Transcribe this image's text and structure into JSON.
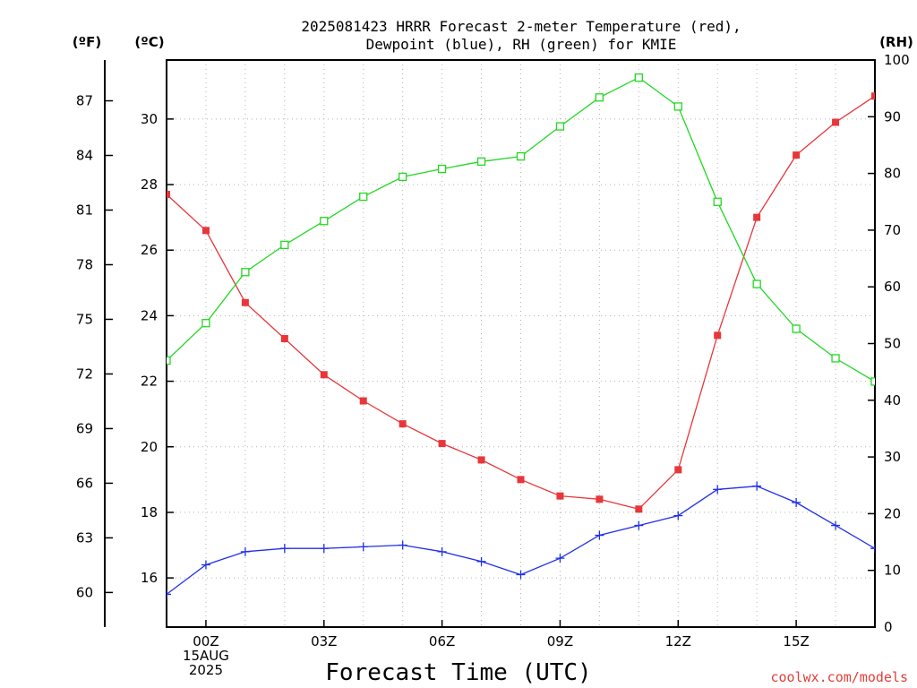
{
  "chart_data": {
    "type": "line",
    "title_lines": [
      "2025081423 HRRR Forecast 2-meter Temperature (red),",
      "Dewpoint (blue), RH (green) for KMIE"
    ],
    "xlabel": "Forecast Time (UTC)",
    "credit": "coolwx.com/models",
    "axis_units": {
      "f": "(ºF)",
      "c": "(ºC)",
      "rh": "(RH)"
    },
    "x_hours": [
      -1,
      0,
      1,
      2,
      3,
      4,
      5,
      6,
      7,
      8,
      9,
      10,
      11,
      12,
      13,
      14,
      15,
      16,
      17
    ],
    "xlim": [
      -1,
      17
    ],
    "x_ticks": [
      {
        "hour": 0,
        "lines": [
          "00Z",
          "15AUG",
          "2025"
        ]
      },
      {
        "hour": 3,
        "lines": [
          "03Z"
        ]
      },
      {
        "hour": 6,
        "lines": [
          "06Z"
        ]
      },
      {
        "hour": 9,
        "lines": [
          "09Z"
        ]
      },
      {
        "hour": 12,
        "lines": [
          "12Z"
        ]
      },
      {
        "hour": 15,
        "lines": [
          "15Z"
        ]
      }
    ],
    "ylim_c": [
      14.5,
      31.8
    ],
    "yticks_c": [
      "16",
      "18",
      "20",
      "22",
      "24",
      "26",
      "28",
      "30"
    ],
    "yticks_f": [
      "60",
      "63",
      "66",
      "69",
      "72",
      "75",
      "78",
      "81",
      "84",
      "87"
    ],
    "ylim_rh": [
      0,
      100
    ],
    "yticks_rh": [
      "0",
      "10",
      "20",
      "30",
      "40",
      "50",
      "60",
      "70",
      "80",
      "90",
      "100"
    ],
    "grid": true,
    "series": [
      {
        "key": "temp",
        "color": "#e8363a",
        "marker": "filled-square",
        "unit": "C",
        "values": [
          27.7,
          26.6,
          24.4,
          23.3,
          22.2,
          21.4,
          20.7,
          20.1,
          19.6,
          19.0,
          18.5,
          18.4,
          18.1,
          19.3,
          23.4,
          27.0,
          28.9,
          29.9,
          30.7
        ]
      },
      {
        "key": "dewpoint",
        "color": "#2030e8",
        "marker": "plus",
        "unit": "C",
        "values": [
          15.5,
          16.4,
          16.8,
          16.9,
          16.9,
          16.95,
          17.0,
          16.8,
          16.5,
          16.1,
          16.6,
          17.3,
          17.6,
          17.9,
          18.7,
          18.8,
          18.3,
          17.6,
          16.9
        ]
      },
      {
        "key": "rh",
        "color": "#22d822",
        "marker": "open-square",
        "unit": "RH",
        "values": [
          47.0,
          53.6,
          62.6,
          67.4,
          71.6,
          75.9,
          79.4,
          80.8,
          82.1,
          83.0,
          88.3,
          93.4,
          96.9,
          91.8,
          75.0,
          60.5,
          52.6,
          47.4,
          43.3
        ]
      }
    ]
  }
}
